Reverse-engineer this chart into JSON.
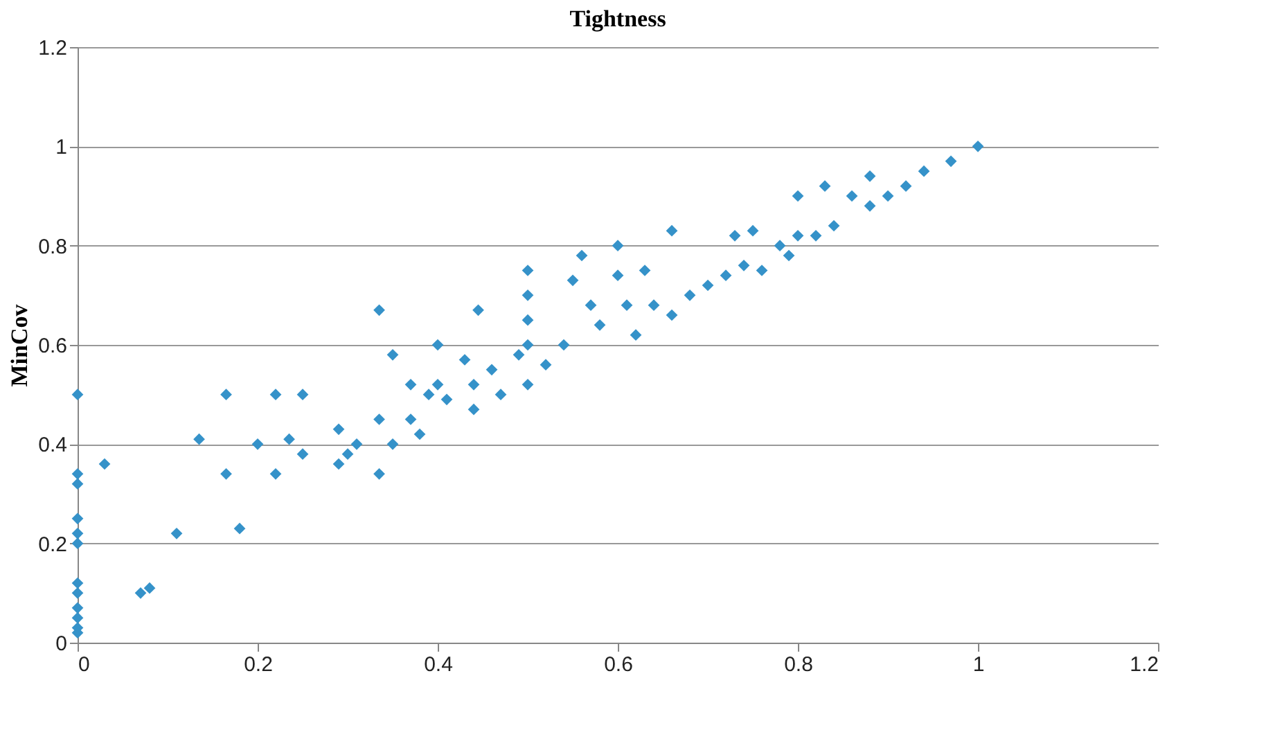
{
  "chart_data": {
    "type": "scatter",
    "title": "Tightness",
    "ylabel": "MinCov",
    "xlim": [
      0,
      1.2
    ],
    "xticks": [
      0,
      0.2,
      0.4,
      0.6,
      0.8,
      1,
      1.2
    ],
    "ylim": [
      0,
      1.2
    ],
    "yticks": [
      0,
      0.2,
      0.4,
      0.6,
      0.8,
      1,
      1.2
    ],
    "grid": "y",
    "marker": "diamond",
    "series": [
      {
        "color": "#3592c9",
        "x": [
          0,
          0,
          0,
          0,
          0,
          0,
          0,
          0,
          0,
          0,
          0,
          0,
          0.03,
          0.07,
          0.08,
          0.11,
          0.135,
          0.165,
          0.165,
          0.18,
          0.2,
          0.22,
          0.22,
          0.235,
          0.25,
          0.25,
          0.29,
          0.29,
          0.3,
          0.31,
          0.335,
          0.335,
          0.335,
          0.35,
          0.35,
          0.37,
          0.37,
          0.38,
          0.39,
          0.4,
          0.4,
          0.41,
          0.43,
          0.44,
          0.44,
          0.445,
          0.46,
          0.47,
          0.49,
          0.5,
          0.5,
          0.5,
          0.5,
          0.5,
          0.52,
          0.54,
          0.55,
          0.56,
          0.57,
          0.58,
          0.6,
          0.6,
          0.61,
          0.62,
          0.63,
          0.64,
          0.66,
          0.66,
          0.68,
          0.7,
          0.72,
          0.73,
          0.74,
          0.75,
          0.76,
          0.78,
          0.79,
          0.8,
          0.8,
          0.82,
          0.83,
          0.84,
          0.86,
          0.88,
          0.88,
          0.9,
          0.92,
          0.94,
          0.97,
          1
        ],
        "values": [
          0.5,
          0.34,
          0.32,
          0.25,
          0.22,
          0.2,
          0.12,
          0.1,
          0.07,
          0.05,
          0.03,
          0.02,
          0.36,
          0.1,
          0.11,
          0.22,
          0.41,
          0.5,
          0.34,
          0.23,
          0.4,
          0.5,
          0.34,
          0.41,
          0.5,
          0.38,
          0.43,
          0.36,
          0.38,
          0.4,
          0.67,
          0.45,
          0.34,
          0.58,
          0.4,
          0.52,
          0.45,
          0.42,
          0.5,
          0.6,
          0.52,
          0.49,
          0.57,
          0.47,
          0.52,
          0.67,
          0.55,
          0.5,
          0.58,
          0.75,
          0.7,
          0.65,
          0.6,
          0.52,
          0.56,
          0.6,
          0.73,
          0.78,
          0.68,
          0.64,
          0.8,
          0.74,
          0.68,
          0.62,
          0.75,
          0.68,
          0.83,
          0.66,
          0.7,
          0.72,
          0.74,
          0.82,
          0.76,
          0.83,
          0.75,
          0.8,
          0.78,
          0.9,
          0.82,
          0.82,
          0.92,
          0.84,
          0.9,
          0.94,
          0.88,
          0.9,
          0.92,
          0.95,
          0.97,
          1
        ]
      }
    ]
  }
}
